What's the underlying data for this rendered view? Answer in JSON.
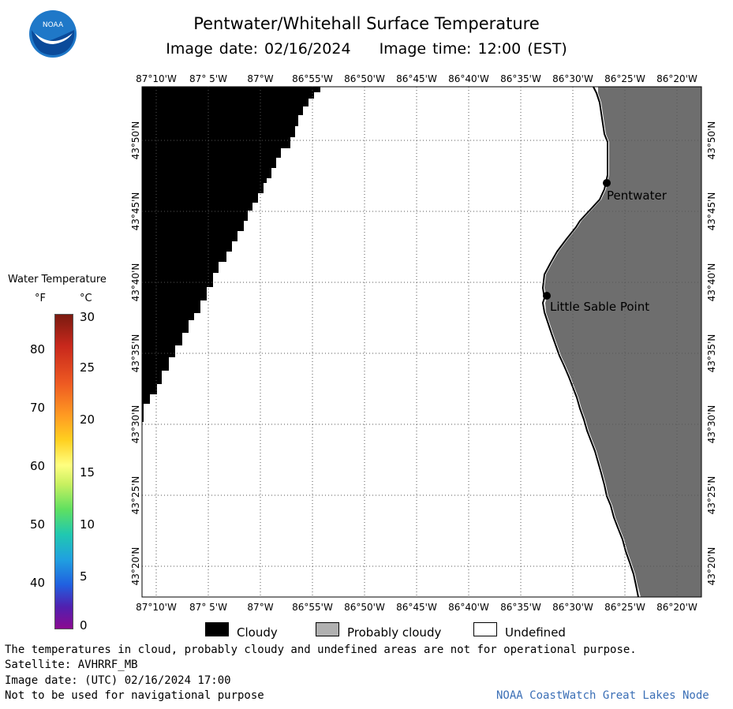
{
  "header": {
    "title": "Pentwater/Whitehall Surface Temperature",
    "date_label": "Image date: 02/16/2024",
    "time_label": "Image time: 12:00 (EST)",
    "logo_text": "NOAA"
  },
  "map": {
    "lon_labels": [
      "87°10'W",
      "87° 5'W",
      "87°W",
      "86°55'W",
      "86°50'W",
      "86°45'W",
      "86°40'W",
      "86°35'W",
      "86°30'W",
      "86°25'W",
      "86°20'W"
    ],
    "lat_labels": [
      "43°50'N",
      "43°45'N",
      "43°40'N",
      "43°35'N",
      "43°30'N",
      "43°25'N",
      "43°20'N"
    ],
    "places": [
      {
        "name": "Pentwater",
        "lat": 43.781,
        "lon": -86.438
      },
      {
        "name": "Little Sable Point",
        "lat": 43.651,
        "lon": -86.539
      }
    ],
    "colors": {
      "cloudy": "#000000",
      "probably_cloudy": "#6e6e6e",
      "undefined": "#ffffff",
      "coastline": "#000000"
    }
  },
  "legend": {
    "title": "Water Temperature",
    "unit_f": "°F",
    "unit_c": "°C",
    "f_ticks": [
      "80",
      "70",
      "60",
      "50",
      "40"
    ],
    "c_ticks": [
      "30",
      "25",
      "20",
      "15",
      "10",
      "5",
      "0"
    ]
  },
  "key": {
    "cloudy": "Cloudy",
    "probably_cloudy": "Probably cloudy",
    "undefined": "Undefined"
  },
  "footer": {
    "disclaimer": "The temperatures in cloud, probably cloudy and undefined areas are not for operational purpose.",
    "satellite": "Satellite: AVHRRF_MB",
    "utc_date": "Image date: (UTC) 02/16/2024  17:00",
    "nav_warning": "Not to be used for navigational purpose",
    "credit": "NOAA CoastWatch Great Lakes Node"
  }
}
